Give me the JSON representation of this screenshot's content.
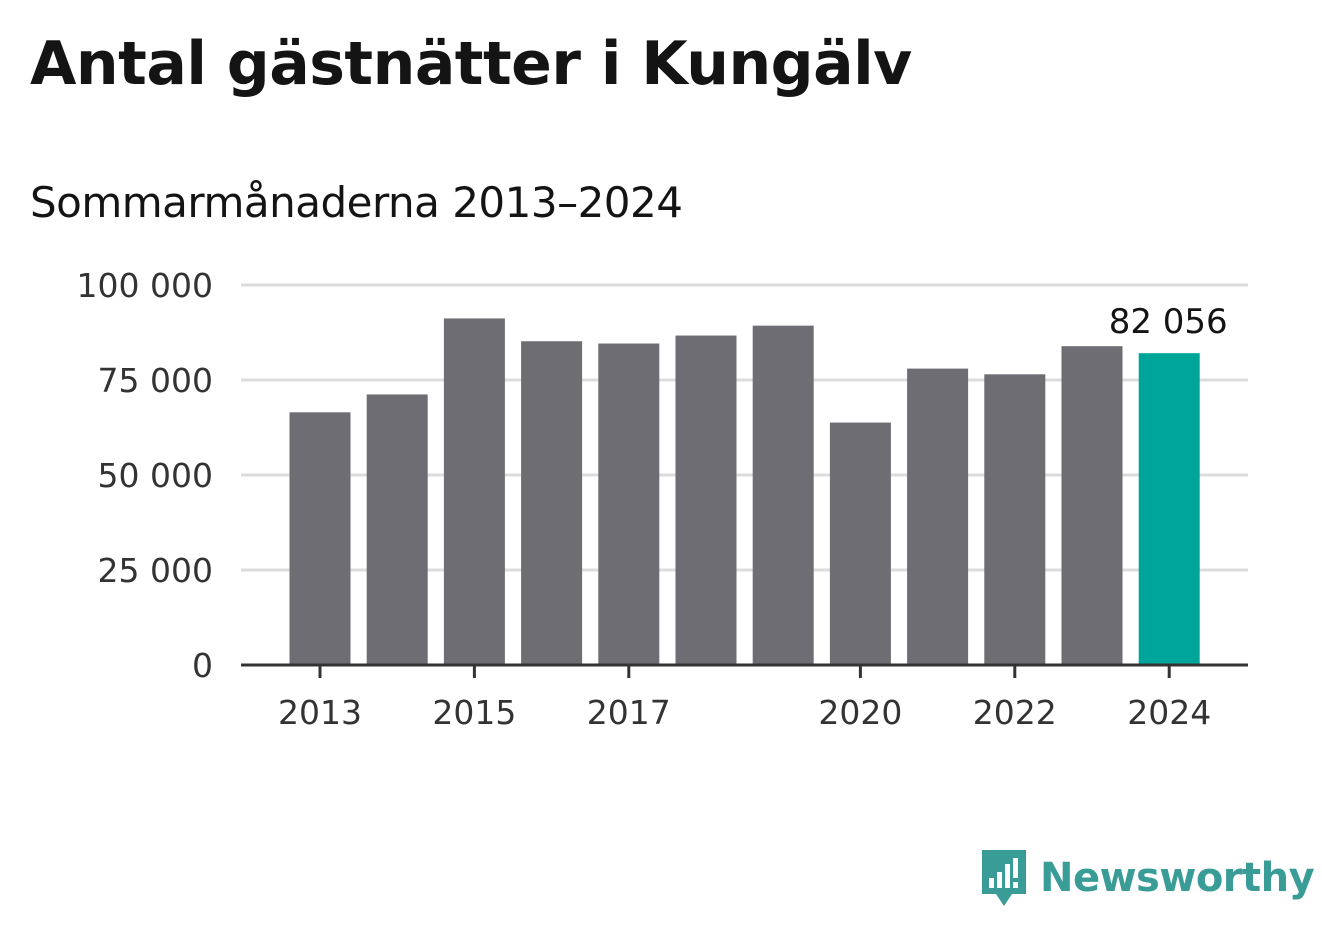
{
  "chart_data": {
    "type": "bar",
    "title": "Antal gästnätter i Kungälv",
    "subtitle": "Sommarmånaderna 2013–2024",
    "xlabel": "",
    "ylabel": "",
    "categories": [
      "2013",
      "2014",
      "2015",
      "2016",
      "2017",
      "2018",
      "2019",
      "2020",
      "2021",
      "2022",
      "2023",
      "2024"
    ],
    "values": [
      66500,
      71200,
      91200,
      85200,
      84600,
      86700,
      89300,
      63800,
      78000,
      76500,
      83900,
      82056
    ],
    "ylim": [
      0,
      100000
    ],
    "yticks": [
      0,
      25000,
      50000,
      75000,
      100000
    ],
    "ytick_labels": [
      "0",
      "25 000",
      "50 000",
      "75 000",
      "100 000"
    ],
    "xtick_labels": [
      "2013",
      "2015",
      "2017",
      "2020",
      "2022",
      "2024"
    ],
    "grid": true,
    "colors": {
      "bar": "#6e6d73",
      "highlight": "#00a59a",
      "grid": "#dcdcdc",
      "axis": "#333333"
    },
    "highlight_index": 11,
    "annotation": {
      "index": 11,
      "text": "82 056"
    }
  },
  "brand": {
    "name": "Newsworthy",
    "icon": "bar-chart-speech-bubble-icon",
    "color": "#3a9c96"
  }
}
